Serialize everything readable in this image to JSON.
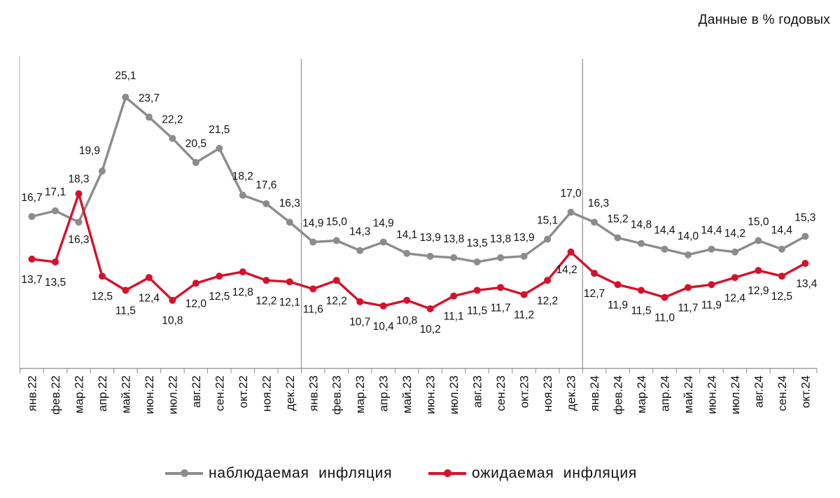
{
  "units_note": "Данные в % годовых",
  "chart_data": {
    "type": "line",
    "title": "",
    "xlabel": "",
    "ylabel": "",
    "ylim": [
      6,
      28
    ],
    "grid": false,
    "legend_position": "bottom-center",
    "categories": [
      "янв.22",
      "фев.22",
      "мар.22",
      "апр.22",
      "май.22",
      "июн.22",
      "июл.22",
      "авг.22",
      "сен.22",
      "окт.22",
      "ноя.22",
      "дек.22",
      "янв.23",
      "фев.23",
      "мар.23",
      "апр.23",
      "май.23",
      "июн.23",
      "июл.23",
      "авг.23",
      "сен.23",
      "окт.23",
      "ноя.23",
      "дек.23",
      "янв.24",
      "фев.24",
      "мар.24",
      "апр.24",
      "май.24",
      "июн.24",
      "июл.24",
      "авг.24",
      "сен.24",
      "окт.24"
    ],
    "series": [
      {
        "name": "наблюдаемая  инфляция",
        "color": "#8c8c8c",
        "values": [
          16.7,
          17.1,
          16.3,
          19.9,
          25.1,
          23.7,
          22.2,
          20.5,
          21.5,
          18.2,
          17.6,
          16.3,
          14.9,
          15.0,
          14.3,
          14.9,
          14.1,
          13.9,
          13.8,
          13.5,
          13.8,
          13.9,
          15.1,
          17.0,
          16.3,
          15.2,
          14.8,
          14.4,
          14.0,
          14.4,
          14.2,
          15.0,
          14.4,
          15.3
        ],
        "labels": [
          "16,7",
          "17,1",
          "16,3",
          "19,9",
          "25,1",
          "23,7",
          "22,2",
          "20,5",
          "21,5",
          "18,2",
          "17,6",
          "16,3",
          "14,9",
          "15,0",
          "14,3",
          "14,9",
          "14,1",
          "13,9",
          "13,8",
          "13,5",
          "13,8",
          "13,9",
          "15,1",
          "17,0",
          "16,3",
          "15,2",
          "14,8",
          "14,4",
          "14,0",
          "14,4",
          "14,2",
          "15,0",
          "14,4",
          "15,3"
        ]
      },
      {
        "name": "ожидаемая  инфляция",
        "color": "#d7102a",
        "values": [
          13.7,
          13.5,
          18.3,
          12.5,
          11.5,
          12.4,
          10.8,
          12.0,
          12.5,
          12.8,
          12.2,
          12.1,
          11.6,
          12.2,
          10.7,
          10.4,
          10.8,
          10.2,
          11.1,
          11.5,
          11.7,
          11.2,
          12.2,
          14.2,
          12.7,
          11.9,
          11.5,
          11.0,
          11.7,
          11.9,
          12.4,
          12.9,
          12.5,
          13.4
        ],
        "labels": [
          "13,7",
          "13,5",
          "18,3",
          "12,5",
          "11,5",
          "12,4",
          "10,8",
          "12,0",
          "12,5",
          "12,8",
          "12,2",
          "12,1",
          "11,6",
          "12,2",
          "10,7",
          "10,4",
          "10,8",
          "10,2",
          "11,1",
          "11,5",
          "11,7",
          "11,2",
          "12,2",
          "14,2",
          "12,7",
          "11,9",
          "11,5",
          "11,0",
          "11,7",
          "11,9",
          "12,4",
          "12,9",
          "12,5",
          "13,4"
        ]
      }
    ],
    "year_separators_after": [
      "дек.22",
      "дек.23"
    ]
  }
}
